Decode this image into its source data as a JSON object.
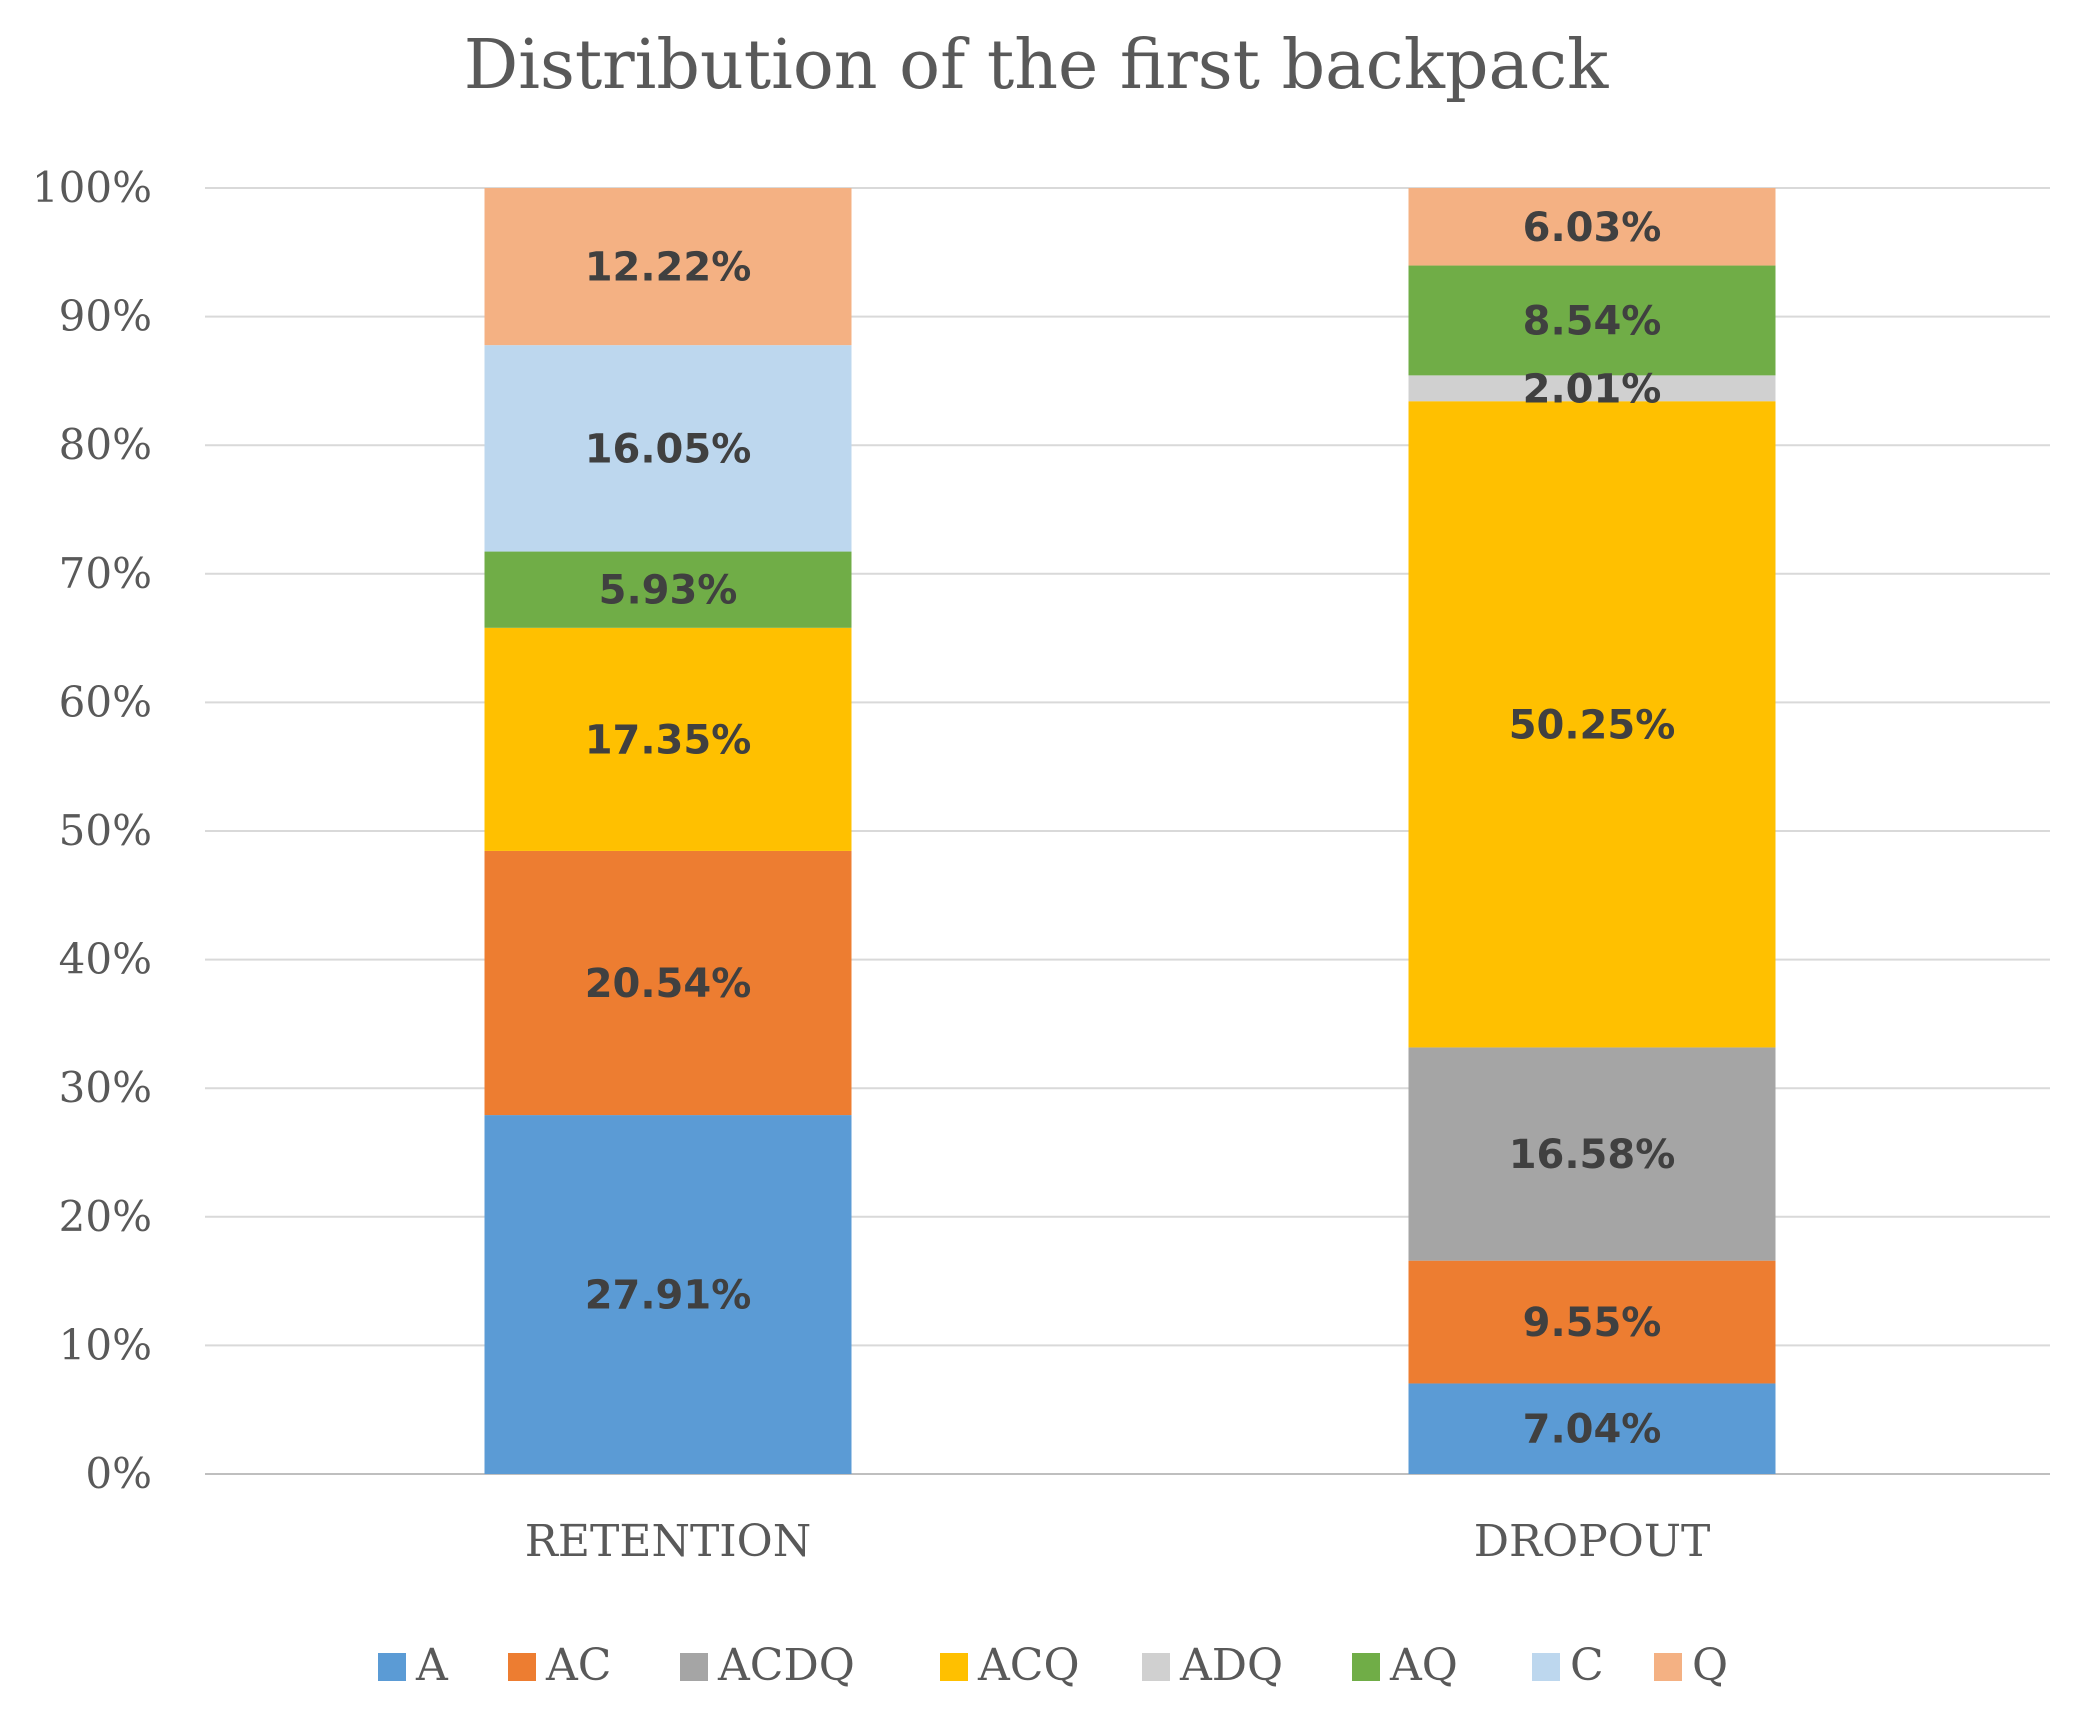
{
  "chart_data": {
    "type": "bar",
    "stacked": true,
    "title": "Distribution of the first backpack",
    "xlabel": "",
    "ylabel": "",
    "ylim": [
      0,
      100
    ],
    "y_ticks": [
      "0%",
      "10%",
      "20%",
      "30%",
      "40%",
      "50%",
      "60%",
      "70%",
      "80%",
      "90%",
      "100%"
    ],
    "grid": true,
    "legend_position": "bottom",
    "categories": [
      "RETENTION",
      "DROPOUT"
    ],
    "series": [
      {
        "name": "A",
        "color": "#5B9BD5",
        "values": [
          27.91,
          7.04
        ],
        "labels": [
          "27.91%",
          "7.04%"
        ]
      },
      {
        "name": "AC",
        "color": "#ED7D31",
        "values": [
          20.54,
          9.55
        ],
        "labels": [
          "20.54%",
          "9.55%"
        ]
      },
      {
        "name": "ACDQ",
        "color": "#A5A5A5",
        "values": [
          0,
          16.58
        ],
        "labels": [
          "",
          "16.58%"
        ]
      },
      {
        "name": "ACQ",
        "color": "#FFC000",
        "values": [
          17.35,
          50.25
        ],
        "labels": [
          "17.35%",
          "50.25%"
        ]
      },
      {
        "name": "ADQ",
        "color": "#D0D0D0",
        "values": [
          0,
          2.01
        ],
        "labels": [
          "",
          "2.01%"
        ]
      },
      {
        "name": "AQ",
        "color": "#70AD47",
        "values": [
          5.93,
          8.54
        ],
        "labels": [
          "5.93%",
          "8.54%"
        ]
      },
      {
        "name": "C",
        "color": "#BDD7EE",
        "values": [
          16.05,
          0
        ],
        "labels": [
          "16.05%",
          ""
        ]
      },
      {
        "name": "Q",
        "color": "#F4B183",
        "values": [
          12.22,
          6.03
        ],
        "labels": [
          "12.22%",
          "6.03%"
        ]
      }
    ]
  }
}
